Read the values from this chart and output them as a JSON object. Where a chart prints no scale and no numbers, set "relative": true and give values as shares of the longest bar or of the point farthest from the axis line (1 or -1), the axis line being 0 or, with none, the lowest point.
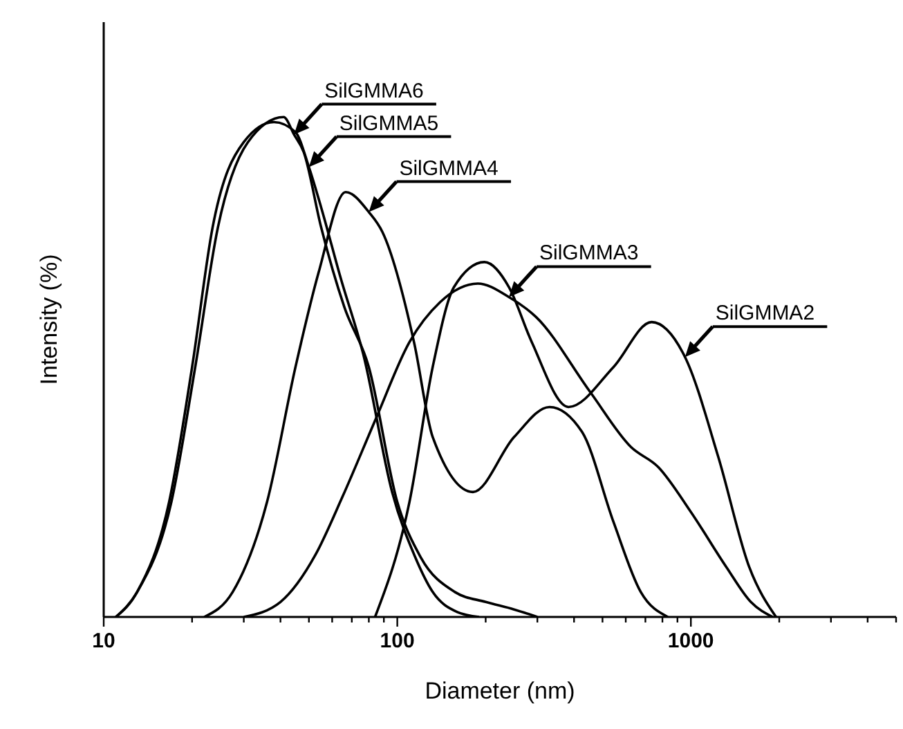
{
  "chart_data": {
    "type": "line",
    "relative": true,
    "log": "x",
    "xlabel": "Diameter (nm)",
    "ylabel": "Intensity (%)",
    "xlim": [
      10,
      5000
    ],
    "xticks": [
      10,
      {
        "value": 20,
        "label": null
      },
      {
        "value": 30,
        "label": null
      },
      {
        "value": 40,
        "label": null
      },
      {
        "value": 50,
        "label": null
      },
      {
        "value": 60,
        "label": null
      },
      {
        "value": 70,
        "label": null
      },
      {
        "value": 80,
        "label": null
      },
      {
        "value": 90,
        "label": null
      },
      100,
      {
        "value": 200,
        "label": null
      },
      {
        "value": 300,
        "label": null
      },
      {
        "value": 400,
        "label": null
      },
      {
        "value": 500,
        "label": null
      },
      {
        "value": 600,
        "label": null
      },
      {
        "value": 700,
        "label": null
      },
      {
        "value": 800,
        "label": null
      },
      {
        "value": 900,
        "label": null
      },
      1000,
      {
        "value": 2000,
        "label": null
      },
      {
        "value": 3000,
        "label": null
      },
      {
        "value": 4000,
        "label": null
      },
      {
        "value": 5000,
        "label": null
      }
    ],
    "series": [
      {
        "name": "SilGMMA6",
        "color": "#000000",
        "x": [
          11,
          13,
          17,
          20.5,
          24.5,
          31,
          41,
          44.5,
          48,
          55,
          66,
          80,
          100,
          120,
          157,
          200,
          250,
          300
        ],
        "values": [
          0,
          0.05,
          0.23,
          0.5,
          0.78,
          0.95,
          1,
          0.965,
          0.93,
          0.78,
          0.62,
          0.5,
          0.23,
          0.12,
          0.05,
          0.03,
          0.015,
          0
        ]
      },
      {
        "name": "SilGMMA5",
        "color": "#000000",
        "x": [
          11,
          13,
          16.7,
          20,
          23.5,
          30,
          38,
          45,
          50,
          55,
          64,
          77,
          96,
          115,
          132,
          160,
          190
        ],
        "values": [
          0,
          0.05,
          0.23,
          0.5,
          0.78,
          0.95,
          0.99,
          0.97,
          0.9,
          0.82,
          0.68,
          0.52,
          0.25,
          0.12,
          0.05,
          0.01,
          0
        ]
      },
      {
        "name": "SilGMMA4",
        "color": "#000000",
        "x": [
          22,
          27.5,
          36,
          45,
          54,
          66.7,
          80,
          89,
          114,
          132,
          181,
          250,
          330,
          426,
          545,
          675,
          835
        ],
        "values": [
          0,
          0.05,
          0.23,
          0.5,
          0.69,
          0.85,
          0.81,
          0.77,
          0.55,
          0.36,
          0.25,
          0.36,
          0.42,
          0.37,
          0.19,
          0.05,
          0
        ]
      },
      {
        "name": "SilGMMA3",
        "color": "#000000",
        "x": [
          30,
          40,
          52.7,
          65,
          85,
          110,
          140,
          188,
          240,
          297,
          454,
          625,
          774,
          1000,
          1320,
          1600,
          1900
        ],
        "values": [
          0,
          0.03,
          0.125,
          0.24,
          0.4,
          0.55,
          0.63,
          0.667,
          0.64,
          0.6,
          0.45,
          0.34,
          0.3,
          0.21,
          0.1,
          0.03,
          0
        ]
      },
      {
        "name": "SilGMMA2",
        "color": "#000000",
        "x": [
          84,
          110,
          132,
          156,
          198,
          240,
          287,
          383,
          545,
          735,
          955,
          1240,
          1580,
          1950
        ],
        "values": [
          0,
          0.23,
          0.5,
          0.66,
          0.71,
          0.66,
          0.55,
          0.42,
          0.5,
          0.59,
          0.52,
          0.32,
          0.1,
          0
        ]
      }
    ]
  }
}
